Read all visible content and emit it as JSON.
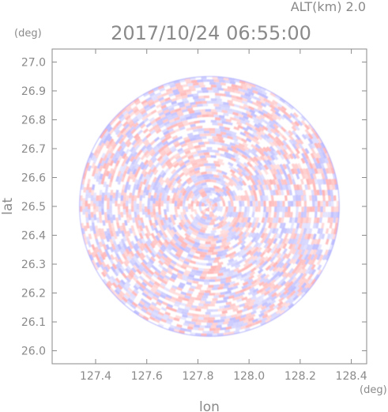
{
  "header": {
    "altitude_label": "ALT(km) 2.0",
    "timestamp": "2017/10/24 06:55:00"
  },
  "chart_data": {
    "type": "heatmap",
    "title": "2017/10/24 06:55:00",
    "xlabel": "lon",
    "ylabel": "lat",
    "xunit": "(deg)",
    "yunit": "(deg)",
    "xlim": [
      127.23,
      128.46
    ],
    "ylim": [
      25.955,
      27.045
    ],
    "x_ticks": [
      "127.4",
      "127.6",
      "127.8",
      "128.0",
      "128.2",
      "128.4"
    ],
    "y_ticks": [
      "26.0",
      "26.1",
      "26.2",
      "26.3",
      "26.4",
      "26.5",
      "26.6",
      "26.7",
      "26.8",
      "26.9",
      "27.0"
    ],
    "radar_center": {
      "lon": 127.845,
      "lat": 26.5
    },
    "radar_extent_deg_lat": 0.45,
    "colors": {
      "positive": "#ffb0b0",
      "negative": "#b8b8ff",
      "neutral": "#ffffff",
      "axis": "#8a8a8a"
    }
  }
}
